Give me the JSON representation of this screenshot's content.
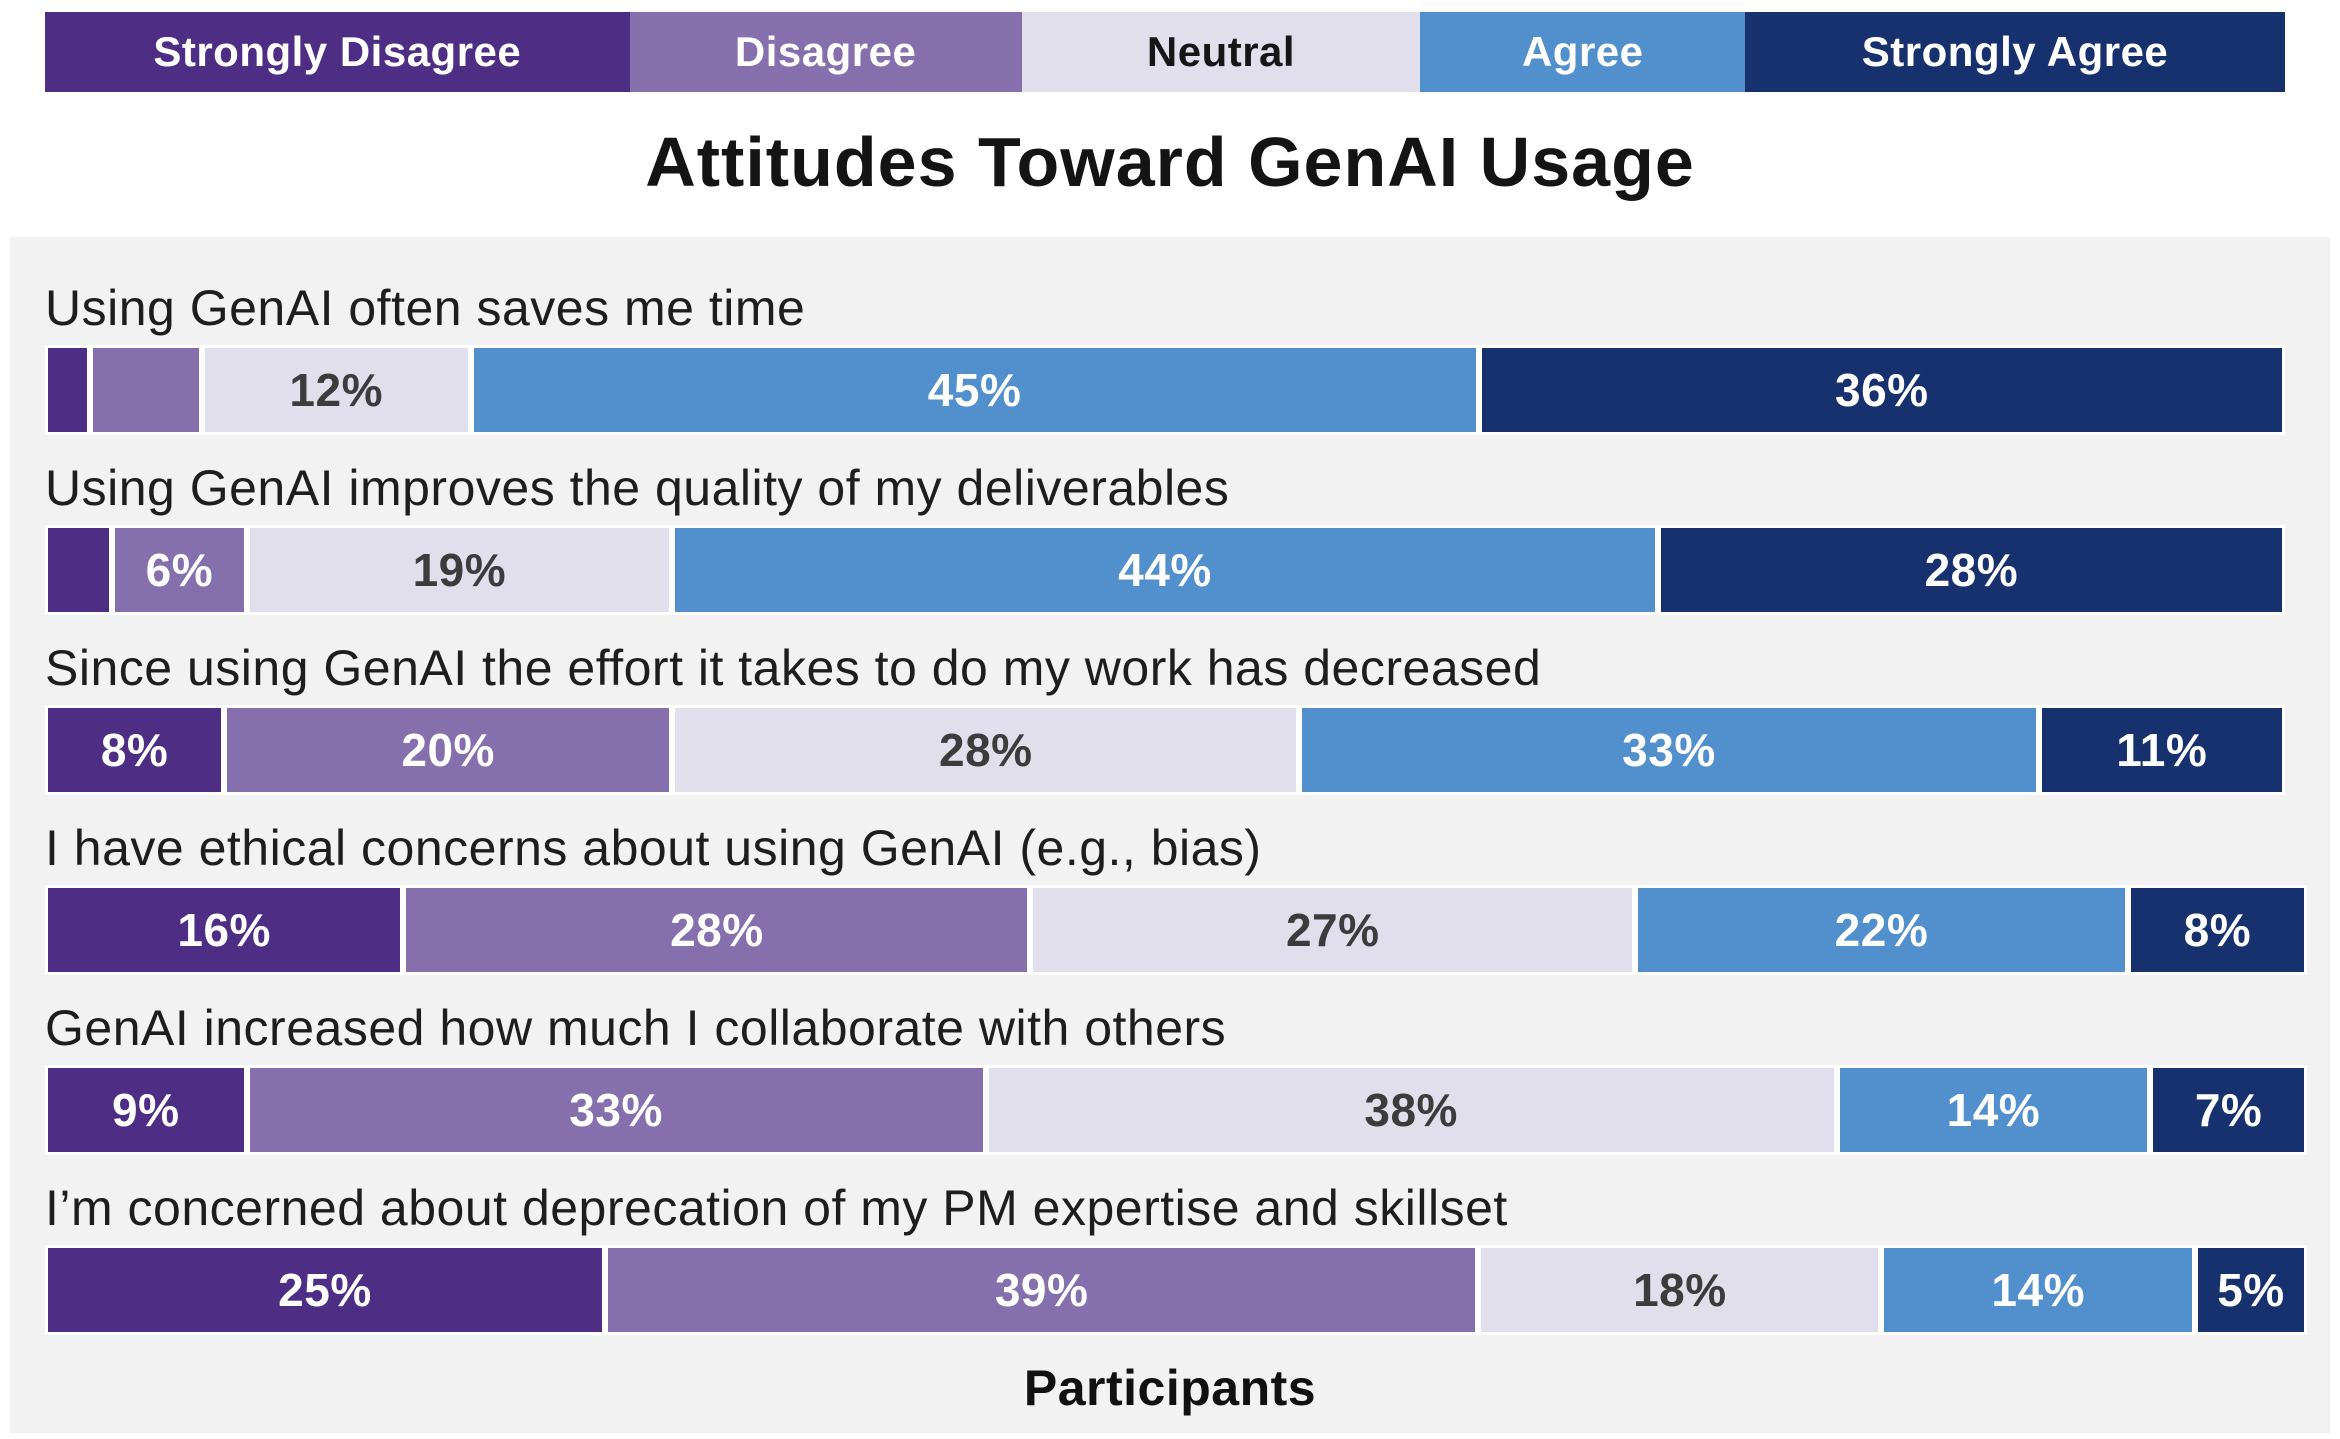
{
  "title": "Attitudes Toward GenAI Usage",
  "axis": {
    "xlabel": "Participants"
  },
  "legend": {
    "items": [
      {
        "label": "Strongly Disagree",
        "color": "#4e2d84",
        "text_color": "#ffffff",
        "width_pct": 26.1
      },
      {
        "label": "Disagree",
        "color": "#8570ad",
        "text_color": "#ffffff",
        "width_pct": 17.5
      },
      {
        "label": "Neutral",
        "color": "#e2dfec",
        "text_color": "#161616",
        "width_pct": 17.8
      },
      {
        "label": "Agree",
        "color": "#5190cc",
        "text_color": "#ffffff",
        "width_pct": 14.5
      },
      {
        "label": "Strongly Agree",
        "color": "#16316d",
        "text_color": "#ffffff",
        "width_pct": 24.1
      }
    ]
  },
  "colors": {
    "panel_background": "#f2f2f3",
    "page_background": "#ffffff",
    "neutral_value_text": "#3c3c3c",
    "value_text": "#ffffff"
  },
  "chart_data": {
    "type": "bar",
    "stacked": true,
    "orientation": "horizontal",
    "title": "Attitudes Toward GenAI Usage",
    "xlabel": "Participants",
    "ylabel": "",
    "xlim": [
      0,
      101
    ],
    "grid": false,
    "legend_position": "top",
    "categories": [
      "Strongly Disagree",
      "Disagree",
      "Neutral",
      "Agree",
      "Strongly Agree"
    ],
    "series_colors": [
      "#4e2d84",
      "#8570ad",
      "#e2dfec",
      "#5190cc",
      "#16316d"
    ],
    "rows": [
      {
        "label": "Using GenAI often saves me time",
        "values": [
          2,
          5,
          12,
          45,
          36
        ],
        "shown_labels": [
          "",
          "",
          "12%",
          "45%",
          "36%"
        ]
      },
      {
        "label": "Using GenAI improves the quality of my deliverables",
        "values": [
          3,
          6,
          19,
          44,
          28
        ],
        "shown_labels": [
          "",
          "6%",
          "19%",
          "44%",
          "28%"
        ]
      },
      {
        "label": "Since using GenAI the effort it takes to do my work has decreased",
        "values": [
          8,
          20,
          28,
          33,
          11
        ],
        "shown_labels": [
          "8%",
          "20%",
          "28%",
          "33%",
          "11%"
        ]
      },
      {
        "label": "I have ethical concerns about using GenAI (e.g., bias)",
        "values": [
          16,
          28,
          27,
          22,
          8
        ],
        "shown_labels": [
          "16%",
          "28%",
          "27%",
          "22%",
          "8%"
        ]
      },
      {
        "label": "GenAI increased how much I collaborate with others",
        "values": [
          9,
          33,
          38,
          14,
          7
        ],
        "shown_labels": [
          "9%",
          "33%",
          "38%",
          "14%",
          "7%"
        ]
      },
      {
        "label": "I’m concerned about deprecation of my PM expertise and skillset",
        "values": [
          25,
          39,
          18,
          14,
          5
        ],
        "shown_labels": [
          "25%",
          "39%",
          "18%",
          "14%",
          "5%"
        ]
      }
    ]
  }
}
